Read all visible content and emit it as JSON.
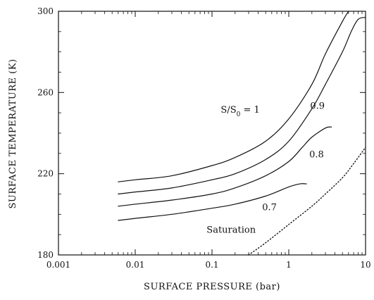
{
  "chart_data": {
    "type": "line",
    "title": "",
    "xlabel": "SURFACE PRESSURE (bar)",
    "ylabel": "SURFACE TEMPERATURE (K)",
    "xscale": "log",
    "xlim": [
      0.001,
      10
    ],
    "ylim": [
      180,
      300
    ],
    "xticks": [
      {
        "value": 0.001,
        "label": "0.001"
      },
      {
        "value": 0.01,
        "label": "0.01"
      },
      {
        "value": 0.1,
        "label": "0.1"
      },
      {
        "value": 1,
        "label": "1"
      },
      {
        "value": 10,
        "label": "10"
      }
    ],
    "yticks": [
      {
        "value": 180,
        "label": "180"
      },
      {
        "value": 220,
        "label": "220"
      },
      {
        "value": 260,
        "label": "260"
      },
      {
        "value": 300,
        "label": "300"
      }
    ],
    "grid": false,
    "series": [
      {
        "name": "S/S0 = 1",
        "style": "solid",
        "x": [
          0.006,
          0.01,
          0.03,
          0.1,
          0.2,
          0.5,
          1,
          2,
          3,
          5,
          6
        ],
        "y": [
          216,
          217,
          219,
          224,
          228,
          236,
          247,
          264,
          279,
          295,
          300
        ]
      },
      {
        "name": "0.9",
        "style": "solid",
        "x": [
          0.006,
          0.01,
          0.03,
          0.1,
          0.2,
          0.5,
          1,
          2,
          3,
          5,
          6.5,
          8,
          10
        ],
        "y": [
          210,
          211,
          213,
          217,
          220,
          227,
          236,
          252,
          264,
          280,
          290,
          296,
          297
        ]
      },
      {
        "name": "0.8",
        "style": "solid",
        "x": [
          0.006,
          0.01,
          0.03,
          0.1,
          0.2,
          0.5,
          1,
          1.5,
          2,
          3,
          3.6
        ],
        "y": [
          204,
          205,
          207,
          210,
          213,
          219,
          226,
          233,
          238,
          242.5,
          243
        ]
      },
      {
        "name": "0.7",
        "style": "solid",
        "x": [
          0.006,
          0.01,
          0.03,
          0.1,
          0.2,
          0.5,
          1,
          1.4,
          1.7
        ],
        "y": [
          197,
          198,
          200,
          203,
          205,
          209,
          213.5,
          215,
          215
        ]
      },
      {
        "name": "Saturation",
        "style": "dotted",
        "x": [
          0.3,
          0.5,
          1,
          2,
          3,
          5,
          7,
          10
        ],
        "y": [
          180,
          186,
          195,
          204,
          210,
          218,
          225,
          233
        ]
      }
    ],
    "annotations": [
      {
        "text_main": "S/S",
        "text_sub": "0",
        "text_tail": " = 1",
        "x": 0.13,
        "y": 250
      },
      {
        "text": "0.9",
        "x": 1.9,
        "y": 252
      },
      {
        "text": "0.8",
        "x": 1.85,
        "y": 228
      },
      {
        "text": "0.7",
        "x": 0.45,
        "y": 202
      },
      {
        "text": "Saturation",
        "x": 0.085,
        "y": 191
      }
    ]
  }
}
